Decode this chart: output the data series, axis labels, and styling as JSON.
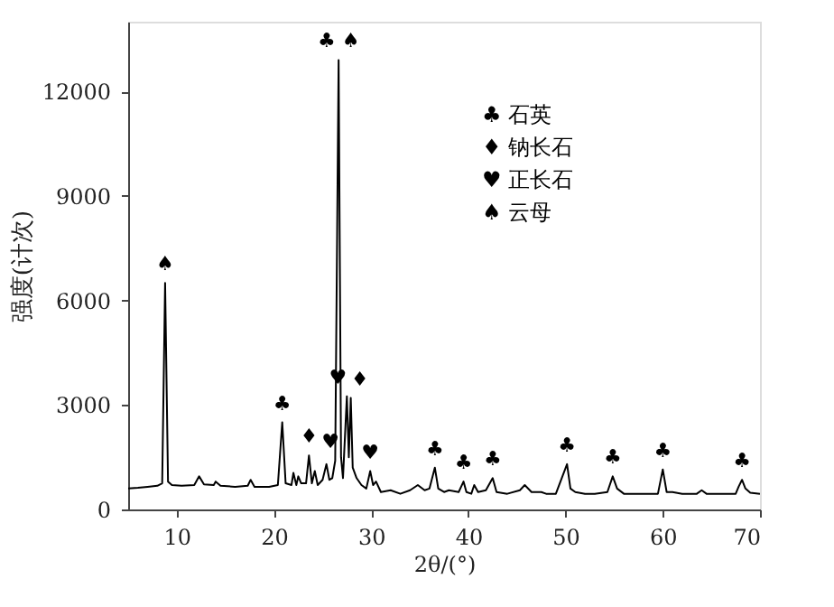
{
  "chart_data": {
    "type": "line",
    "xlabel": "2θ/(°)",
    "ylabel": "强度(计次)",
    "xlim": [
      5,
      70
    ],
    "xticks": [
      10,
      20,
      30,
      40,
      50,
      60,
      70
    ],
    "ylim": [
      0,
      14000
    ],
    "yticks": [
      0,
      3000,
      6000,
      9000,
      12000
    ],
    "grid": false,
    "marker": "none",
    "line_style": "solid",
    "series": [
      {
        "color": "#000000",
        "x": [
          5,
          6,
          7,
          8,
          8.5,
          8.8,
          9.1,
          9.5,
          10.5,
          11.8,
          12.3,
          12.8,
          13.8,
          14,
          14.5,
          16,
          17.3,
          17.6,
          18,
          19.5,
          20.4,
          20.85,
          21.2,
          21.8,
          22,
          22.3,
          22.5,
          22.8,
          23.3,
          23.6,
          23.9,
          24.2,
          24.5,
          25,
          25.4,
          25.7,
          26.0,
          26.3,
          26.65,
          26.9,
          27.1,
          27.5,
          27.7,
          27.9,
          28.1,
          28.5,
          29,
          29.5,
          29.9,
          30.2,
          30.5,
          31,
          32,
          33,
          34,
          34.8,
          35.5,
          36,
          36.55,
          36.9,
          37.5,
          38,
          39,
          39.5,
          39.8,
          40.3,
          40.6,
          41,
          41.8,
          42.5,
          42.9,
          44,
          45.3,
          45.8,
          46.5,
          47.5,
          48,
          49,
          50.15,
          50.5,
          51,
          52,
          53,
          54.3,
          54.85,
          55.3,
          56,
          58,
          59.5,
          60,
          60.4,
          61,
          62,
          63.5,
          64,
          64.5,
          66,
          67.5,
          67.8,
          68.15,
          68.5,
          69,
          70
        ],
        "values": [
          600,
          620,
          650,
          680,
          750,
          6500,
          800,
          700,
          680,
          700,
          950,
          720,
          700,
          800,
          680,
          650,
          680,
          850,
          650,
          650,
          700,
          2500,
          750,
          700,
          1050,
          700,
          950,
          750,
          750,
          1550,
          750,
          1100,
          700,
          850,
          1300,
          850,
          900,
          1400,
          12900,
          1500,
          900,
          3250,
          1500,
          3200,
          1200,
          900,
          700,
          600,
          1100,
          700,
          800,
          500,
          550,
          450,
          550,
          700,
          550,
          600,
          1200,
          600,
          500,
          550,
          500,
          800,
          500,
          450,
          700,
          500,
          550,
          900,
          500,
          450,
          550,
          700,
          500,
          500,
          450,
          450,
          1300,
          600,
          500,
          450,
          450,
          500,
          950,
          600,
          450,
          450,
          450,
          1150,
          500,
          500,
          450,
          450,
          550,
          450,
          450,
          450,
          650,
          850,
          600,
          480,
          450
        ]
      }
    ],
    "annotations": [
      {
        "text": "♠",
        "x": 8.8,
        "y": 6500
      },
      {
        "text": "♣",
        "x": 20.85,
        "y": 2500
      },
      {
        "text": "♦",
        "x": 23.6,
        "y": 1550
      },
      {
        "text": "♥",
        "x": 25.8,
        "y": 1400
      },
      {
        "text": "♣ ♠",
        "x": 26.65,
        "y": 12900
      },
      {
        "text": "♥",
        "x": 27.5,
        "y": 3250
      },
      {
        "text": "♦",
        "x": 27.9,
        "y": 3200
      },
      {
        "text": "♥",
        "x": 29.9,
        "y": 1100
      },
      {
        "text": "♣",
        "x": 36.55,
        "y": 1200
      },
      {
        "text": "♣",
        "x": 39.5,
        "y": 800
      },
      {
        "text": "♣",
        "x": 42.5,
        "y": 900
      },
      {
        "text": "♣",
        "x": 50.15,
        "y": 1300
      },
      {
        "text": "♣",
        "x": 54.85,
        "y": 950
      },
      {
        "text": "♣",
        "x": 60,
        "y": 1150
      },
      {
        "text": "♣",
        "x": 68.15,
        "y": 850
      },
      "♣ 石英",
      "♦ 钠长石",
      "♥ 正长石",
      "♠ 云母"
    ]
  }
}
